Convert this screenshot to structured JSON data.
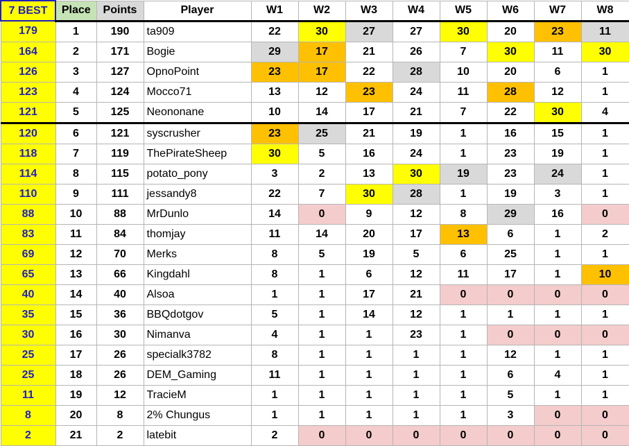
{
  "headers": {
    "best": "7 BEST",
    "place": "Place",
    "points": "Points",
    "player": "Player",
    "weeks": [
      "W1",
      "W2",
      "W3",
      "W4",
      "W5",
      "W6",
      "W7",
      "W8"
    ]
  },
  "colors": {
    "best_text": "#1f1fc0",
    "yellow": "#ffff00",
    "orange": "#ffc000",
    "grey": "#d9d9d9",
    "pink": "#f4cccc",
    "place_header": "#c6e3b5"
  },
  "rows": [
    {
      "best": "179",
      "place": "1",
      "points": "190",
      "player": "ta909",
      "w": [
        "22",
        "30",
        "27",
        "27",
        "30",
        "20",
        "23",
        "11"
      ],
      "c": [
        "",
        "yellow",
        "grey",
        "",
        "yellow",
        "",
        "orange",
        "grey"
      ]
    },
    {
      "best": "164",
      "place": "2",
      "points": "171",
      "player": "Bogie",
      "w": [
        "29",
        "17",
        "21",
        "26",
        "7",
        "30",
        "11",
        "30"
      ],
      "c": [
        "grey",
        "orange",
        "",
        "",
        "",
        "yellow",
        "",
        "yellow"
      ]
    },
    {
      "best": "126",
      "place": "3",
      "points": "127",
      "player": "OpnoPoint",
      "w": [
        "23",
        "17",
        "22",
        "28",
        "10",
        "20",
        "6",
        "1"
      ],
      "c": [
        "orange",
        "orange",
        "",
        "grey",
        "",
        "",
        "",
        ""
      ]
    },
    {
      "best": "123",
      "place": "4",
      "points": "124",
      "player": "Mocco71",
      "w": [
        "13",
        "12",
        "23",
        "24",
        "11",
        "28",
        "12",
        "1"
      ],
      "c": [
        "",
        "",
        "orange",
        "",
        "",
        "orange",
        "",
        ""
      ]
    },
    {
      "best": "121",
      "place": "5",
      "points": "125",
      "player": "Neononane",
      "w": [
        "10",
        "14",
        "17",
        "21",
        "7",
        "22",
        "30",
        "4"
      ],
      "c": [
        "",
        "",
        "",
        "",
        "",
        "",
        "yellow",
        ""
      ]
    },
    {
      "best": "120",
      "place": "6",
      "points": "121",
      "player": "syscrusher",
      "w": [
        "23",
        "25",
        "21",
        "19",
        "1",
        "16",
        "15",
        "1"
      ],
      "c": [
        "orange",
        "grey",
        "",
        "",
        "",
        "",
        "",
        ""
      ]
    },
    {
      "best": "118",
      "place": "7",
      "points": "119",
      "player": "ThePirateSheep",
      "w": [
        "30",
        "5",
        "16",
        "24",
        "1",
        "23",
        "19",
        "1"
      ],
      "c": [
        "yellow",
        "",
        "",
        "",
        "",
        "",
        "",
        ""
      ]
    },
    {
      "best": "114",
      "place": "8",
      "points": "115",
      "player": "potato_pony",
      "w": [
        "3",
        "2",
        "13",
        "30",
        "19",
        "23",
        "24",
        "1"
      ],
      "c": [
        "",
        "",
        "",
        "yellow",
        "grey",
        "",
        "grey",
        ""
      ]
    },
    {
      "best": "110",
      "place": "9",
      "points": "111",
      "player": "jessandy8",
      "w": [
        "22",
        "7",
        "30",
        "28",
        "1",
        "19",
        "3",
        "1"
      ],
      "c": [
        "",
        "",
        "yellow",
        "grey",
        "",
        "",
        "",
        ""
      ]
    },
    {
      "best": "88",
      "place": "10",
      "points": "88",
      "player": "MrDunlo",
      "w": [
        "14",
        "0",
        "9",
        "12",
        "8",
        "29",
        "16",
        "0"
      ],
      "c": [
        "",
        "pink",
        "",
        "",
        "",
        "grey",
        "",
        "pink"
      ]
    },
    {
      "best": "83",
      "place": "11",
      "points": "84",
      "player": "thomjay",
      "w": [
        "11",
        "14",
        "20",
        "17",
        "13",
        "6",
        "1",
        "2"
      ],
      "c": [
        "",
        "",
        "",
        "",
        "orange",
        "",
        "",
        ""
      ]
    },
    {
      "best": "69",
      "place": "12",
      "points": "70",
      "player": "Merks",
      "w": [
        "8",
        "5",
        "19",
        "5",
        "6",
        "25",
        "1",
        "1"
      ],
      "c": [
        "",
        "",
        "",
        "",
        "",
        "",
        "",
        ""
      ]
    },
    {
      "best": "65",
      "place": "13",
      "points": "66",
      "player": "Kingdahl",
      "w": [
        "8",
        "1",
        "6",
        "12",
        "11",
        "17",
        "1",
        "10"
      ],
      "c": [
        "",
        "",
        "",
        "",
        "",
        "",
        "",
        "orange"
      ]
    },
    {
      "best": "40",
      "place": "14",
      "points": "40",
      "player": "Alsoa",
      "w": [
        "1",
        "1",
        "17",
        "21",
        "0",
        "0",
        "0",
        "0"
      ],
      "c": [
        "",
        "",
        "",
        "",
        "pink",
        "pink",
        "pink",
        "pink"
      ]
    },
    {
      "best": "35",
      "place": "15",
      "points": "36",
      "player": "BBQdotgov",
      "w": [
        "5",
        "1",
        "14",
        "12",
        "1",
        "1",
        "1",
        "1"
      ],
      "c": [
        "",
        "",
        "",
        "",
        "",
        "",
        "",
        ""
      ]
    },
    {
      "best": "30",
      "place": "16",
      "points": "30",
      "player": "Nimanva",
      "w": [
        "4",
        "1",
        "1",
        "23",
        "1",
        "0",
        "0",
        "0"
      ],
      "c": [
        "",
        "",
        "",
        "",
        "",
        "pink",
        "pink",
        "pink"
      ]
    },
    {
      "best": "25",
      "place": "17",
      "points": "26",
      "player": "specialk3782",
      "w": [
        "8",
        "1",
        "1",
        "1",
        "1",
        "12",
        "1",
        "1"
      ],
      "c": [
        "",
        "",
        "",
        "",
        "",
        "",
        "",
        ""
      ]
    },
    {
      "best": "25",
      "place": "18",
      "points": "26",
      "player": "DEM_Gaming",
      "w": [
        "11",
        "1",
        "1",
        "1",
        "1",
        "6",
        "4",
        "1"
      ],
      "c": [
        "",
        "",
        "",
        "",
        "",
        "",
        "",
        ""
      ]
    },
    {
      "best": "11",
      "place": "19",
      "points": "12",
      "player": "TracieM",
      "w": [
        "1",
        "1",
        "1",
        "1",
        "1",
        "5",
        "1",
        "1"
      ],
      "c": [
        "",
        "",
        "",
        "",
        "",
        "",
        "",
        ""
      ]
    },
    {
      "best": "8",
      "place": "20",
      "points": "8",
      "player": "2% Chungus",
      "w": [
        "1",
        "1",
        "1",
        "1",
        "1",
        "3",
        "0",
        "0"
      ],
      "c": [
        "",
        "",
        "",
        "",
        "",
        "",
        "pink",
        "pink"
      ]
    },
    {
      "best": "2",
      "place": "21",
      "points": "2",
      "player": "latebit",
      "w": [
        "2",
        "0",
        "0",
        "0",
        "0",
        "0",
        "0",
        "0"
      ],
      "c": [
        "",
        "pink",
        "pink",
        "pink",
        "pink",
        "pink",
        "pink",
        "pink"
      ]
    }
  ]
}
